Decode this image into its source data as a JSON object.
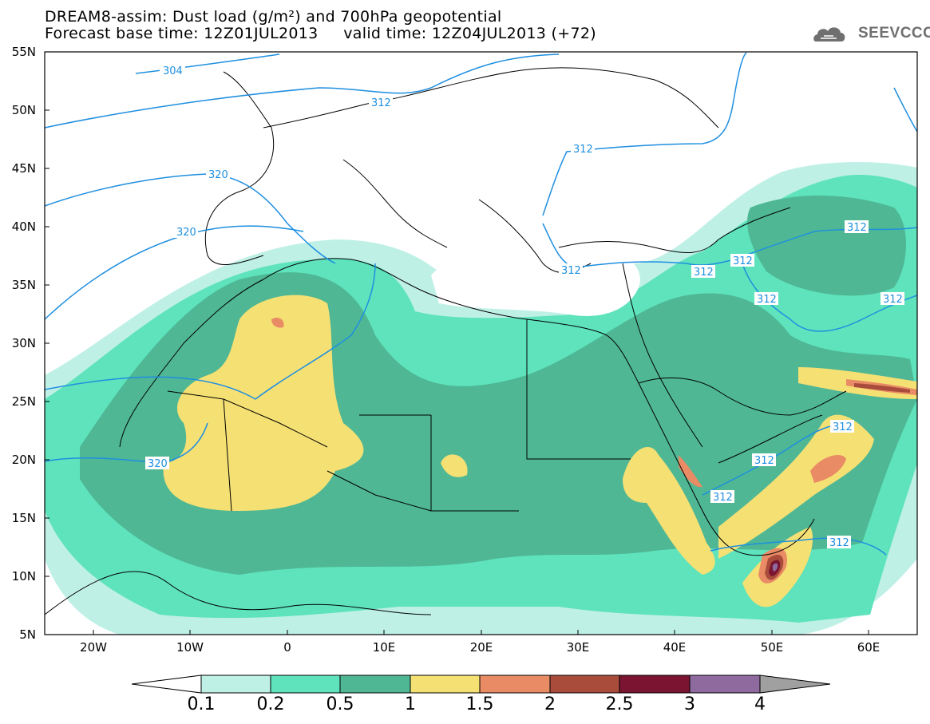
{
  "title": {
    "line1": "DREAM8-assim: Dust load (g/m²) and 700hPa geopotential",
    "line2": "Forecast base time: 12Z01JUL2013     valid time: 12Z04JUL2013 (+72)"
  },
  "logo": {
    "text": "SEEVCCC",
    "icon": "cloud-logo-icon"
  },
  "axes": {
    "lat_labels": [
      "55N",
      "50N",
      "45N",
      "40N",
      "35N",
      "30N",
      "25N",
      "20N",
      "15N",
      "10N",
      "5N"
    ],
    "lon_labels": [
      "20W",
      "10W",
      "0",
      "10E",
      "20E",
      "30E",
      "40E",
      "50E",
      "60E"
    ]
  },
  "contour_labels": [
    "304",
    "312",
    "312",
    "320",
    "320",
    "320",
    "312",
    "312",
    "312",
    "312",
    "312",
    "312",
    "312",
    "312",
    "312",
    "312"
  ],
  "colorbar": {
    "labels": [
      "0.1",
      "0.2",
      "0.5",
      "1",
      "1.5",
      "2",
      "2.5",
      "3",
      "4"
    ],
    "colors": [
      "#ffffff",
      "#bff0e6",
      "#5ee3bc",
      "#4fb794",
      "#f5e074",
      "#e98b65",
      "#a94c3c",
      "#7a1430",
      "#8e6a9e",
      "#a0a0a0"
    ]
  },
  "colors": {
    "contour": "#1f8fe0",
    "border": "#000000"
  }
}
